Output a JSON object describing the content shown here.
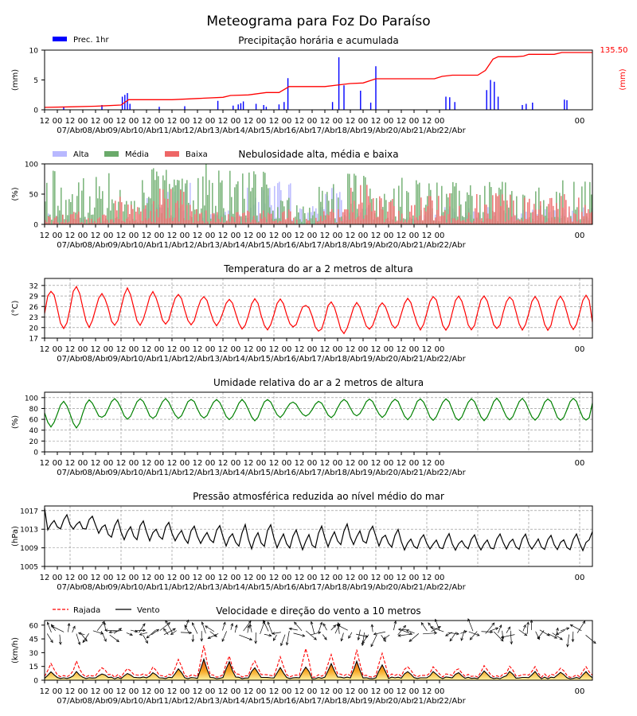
{
  "title": "Meteograma para Foz Do Paraíso",
  "x_axis": {
    "hour_labels": [
      "12",
      "00",
      "12",
      "00",
      "12",
      "00",
      "12",
      "00",
      "12",
      "00",
      "12",
      "00",
      "12",
      "00",
      "12",
      "00",
      "12",
      "00",
      "12",
      "00",
      "12",
      "00",
      "12",
      "00",
      "12",
      "00",
      "12",
      "00",
      "12",
      "00",
      "12",
      "00",
      "00"
    ],
    "date_labels": [
      "07/Abr",
      "08/Abr",
      "09/Abr",
      "10/Abr",
      "11/Abr",
      "12/Abr",
      "13/Abr",
      "14/Abr",
      "15/Abr",
      "16/Abr",
      "17/Abr",
      "18/Abr",
      "19/Abr",
      "20/Abr",
      "21/Abr",
      "22/Abr"
    ]
  },
  "colors": {
    "precip_bar": "#0000ff",
    "precip_acc": "#ff0000",
    "cloud_high": "#b8b8ff",
    "cloud_mid": "#6aaa6a",
    "cloud_low": "#ee6666",
    "temperature": "#ff0000",
    "humidity": "#008000",
    "pressure": "#000000",
    "gust": "#ff0000",
    "wind": "#000000"
  },
  "chart_data": [
    {
      "type": "bar",
      "title": "Precipitação horária e acumulada",
      "ylabel": "(mm)",
      "ylabel_right": "(mm)",
      "right_max_label": "135.50",
      "ylim": [
        0,
        10
      ],
      "yticks": [
        "0",
        "5",
        "10"
      ],
      "legend": [
        "Prec. 1hr"
      ],
      "bars": [
        [
          1.5,
          0.5
        ],
        [
          4.5,
          0.8
        ],
        [
          6.1,
          2.2
        ],
        [
          6.3,
          2.5
        ],
        [
          6.5,
          2.8
        ],
        [
          6.7,
          1.0
        ],
        [
          9,
          0.5
        ],
        [
          11,
          0.6
        ],
        [
          13.6,
          1.5
        ],
        [
          14.8,
          0.7
        ],
        [
          15.2,
          0.9
        ],
        [
          15.4,
          1.1
        ],
        [
          15.6,
          1.4
        ],
        [
          16.6,
          1.0
        ],
        [
          17.2,
          0.8
        ],
        [
          17.4,
          0.5
        ],
        [
          18.4,
          0.9
        ],
        [
          18.8,
          1.3
        ],
        [
          19.1,
          5.3
        ],
        [
          22.6,
          1.3
        ],
        [
          23.1,
          8.8
        ],
        [
          23.5,
          4.1
        ],
        [
          24.8,
          3.2
        ],
        [
          25.6,
          1.2
        ],
        [
          26,
          7.3
        ],
        [
          31.5,
          2.2
        ],
        [
          31.8,
          2.1
        ],
        [
          32.2,
          1.3
        ],
        [
          34.7,
          3.3
        ],
        [
          35,
          5.0
        ],
        [
          35.3,
          4.7
        ],
        [
          35.6,
          2.2
        ],
        [
          37.5,
          0.8
        ],
        [
          37.8,
          1.0
        ],
        [
          38.3,
          1.2
        ],
        [
          40.8,
          1.7
        ],
        [
          41,
          1.6
        ]
      ],
      "accumulated": [
        [
          0,
          0.4
        ],
        [
          2,
          0.5
        ],
        [
          4,
          0.6
        ],
        [
          6,
          0.8
        ],
        [
          6.6,
          1.7
        ],
        [
          8,
          1.7
        ],
        [
          10,
          1.7
        ],
        [
          12,
          1.9
        ],
        [
          14,
          2.1
        ],
        [
          14.6,
          2.4
        ],
        [
          16,
          2.5
        ],
        [
          17.4,
          2.9
        ],
        [
          18.4,
          2.9
        ],
        [
          19.2,
          3.9
        ],
        [
          22,
          3.9
        ],
        [
          23.2,
          4.2
        ],
        [
          24,
          4.4
        ],
        [
          25,
          4.5
        ],
        [
          26,
          5.2
        ],
        [
          30,
          5.2
        ],
        [
          30.6,
          5.2
        ],
        [
          31.2,
          5.6
        ],
        [
          32,
          5.8
        ],
        [
          34,
          5.8
        ],
        [
          34.6,
          6.6
        ],
        [
          35.2,
          8.5
        ],
        [
          35.6,
          8.9
        ],
        [
          37,
          8.9
        ],
        [
          37.6,
          9.0
        ],
        [
          38,
          9.3
        ],
        [
          39,
          9.3
        ],
        [
          40,
          9.3
        ],
        [
          40.6,
          9.6
        ],
        [
          41.6,
          9.6
        ],
        [
          43,
          9.6
        ]
      ],
      "accumulated_total_label": "135.50"
    },
    {
      "type": "bar",
      "title": "Nebulosidade alta, média e baixa",
      "ylabel": "(%)",
      "ylim": [
        0,
        100
      ],
      "yticks": [
        "0",
        "50",
        "100"
      ],
      "series": [
        {
          "name": "Alta",
          "seed": 11,
          "amp": [
            20,
            15,
            10,
            5,
            40,
            60,
            20,
            20,
            55,
            65,
            30,
            55,
            25,
            15,
            10,
            25
          ]
        },
        {
          "name": "Média",
          "seed": 29,
          "amp": [
            80,
            70,
            75,
            55,
            85,
            85,
            95,
            80,
            80,
            80,
            30,
            70,
            75,
            55,
            70,
            65
          ]
        },
        {
          "name": "Baixa",
          "seed": 47,
          "amp": [
            15,
            20,
            15,
            45,
            55,
            65,
            25,
            20,
            20,
            25,
            10,
            25,
            70,
            55,
            35,
            45
          ]
        }
      ]
    },
    {
      "type": "line",
      "title": "Temperatura do ar a 2 metros de altura",
      "ylabel": "(°C)",
      "ylim": [
        17,
        34
      ],
      "yticks": [
        "17",
        "20",
        "23",
        "26",
        "29",
        "32"
      ],
      "daily_max": [
        30.5,
        32,
        29.5,
        31,
        30,
        29.5,
        29,
        28,
        28,
        28,
        26.5,
        27.5,
        27,
        27,
        28.5,
        29
      ],
      "daily_min": [
        19.5,
        20,
        20.5,
        20.5,
        21,
        21,
        21,
        20.5,
        19,
        20,
        20,
        17.5,
        19,
        20,
        19.5,
        19.5
      ],
      "end_value": 21.5
    },
    {
      "type": "line",
      "title": "Umidade relativa do ar a 2 metros de altura",
      "ylabel": "(%)",
      "ylim": [
        0,
        110
      ],
      "yticks": [
        "0",
        "20",
        "40",
        "60",
        "80",
        "100"
      ],
      "daily_max": [
        93,
        92,
        98,
        98,
        98,
        97,
        97,
        95,
        97,
        97,
        88,
        97,
        97,
        97,
        98,
        98
      ],
      "daily_min": [
        47,
        45,
        63,
        60,
        62,
        62,
        63,
        60,
        58,
        64,
        66,
        63,
        66,
        64,
        60,
        58
      ],
      "end_value": 90
    },
    {
      "type": "line",
      "title": "Pressão atmosférica reduzida ao nível médio do mar",
      "ylabel": "(hPa)",
      "ylim": [
        1005,
        1018
      ],
      "yticks": [
        "1005",
        "1009",
        "1013",
        "1017"
      ],
      "daily_max": [
        1016,
        1016,
        1016,
        1015,
        1015,
        1014.5,
        1014,
        1014,
        1014,
        1014,
        1013,
        1014,
        1014,
        1014,
        1013,
        1012
      ],
      "daily_min": [
        1012.5,
        1012.5,
        1012,
        1010,
        1010,
        1010,
        1009,
        1009,
        1008,
        1008.5,
        1008,
        1008,
        1009,
        1009,
        1008,
        1008
      ],
      "start_value": 1017.5,
      "end_value": 1012.5
    },
    {
      "type": "area",
      "title": "Velocidade e direção do vento a 10 metros",
      "ylabel": "(km/h)",
      "ylim": [
        0,
        65
      ],
      "yticks": [
        "0",
        "15",
        "30",
        "45",
        "60"
      ],
      "series": [
        {
          "name": "Rajada",
          "daily_peak": [
            18,
            20,
            14,
            14,
            14,
            22,
            36,
            26,
            22,
            24,
            36,
            28,
            32,
            28,
            16,
            14
          ]
        },
        {
          "name": "Vento",
          "daily_peak": [
            9,
            9,
            7,
            8,
            8,
            12,
            22,
            20,
            14,
            13,
            15,
            18,
            20,
            16,
            10,
            9
          ]
        }
      ]
    }
  ]
}
